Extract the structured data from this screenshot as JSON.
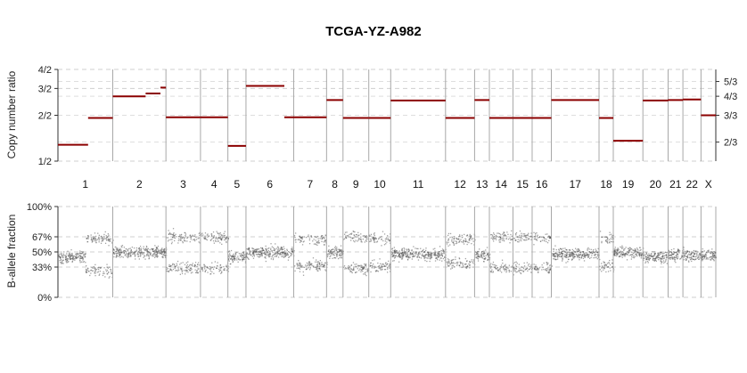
{
  "chart_data": [
    {
      "type": "line",
      "title": "TCGA-YZ-A982",
      "ylabel": "Copy number ratio",
      "y_scale": "log",
      "ylim": [
        0.5,
        2.0
      ],
      "y_ticks": [
        {
          "value": 0.5,
          "label": "1/2"
        },
        {
          "value": 1.0,
          "label": "2/2"
        },
        {
          "value": 1.5,
          "label": "3/2"
        },
        {
          "value": 2.0,
          "label": "4/2"
        }
      ],
      "right_ticks": [
        {
          "value": 0.6667,
          "label": "2/3"
        },
        {
          "value": 1.0,
          "label": "3/3"
        },
        {
          "value": 1.3333,
          "label": "4/3"
        },
        {
          "value": 1.6667,
          "label": "5/3"
        }
      ],
      "grid": true,
      "segment_color": "#8b0000",
      "x_unit": "genome position (chromosome-normalized)",
      "chromosomes": [
        {
          "name": "1",
          "start": 0.0,
          "end": 1.0
        },
        {
          "name": "2",
          "start": 1.0,
          "end": 1.97
        },
        {
          "name": "3",
          "start": 1.97,
          "end": 2.6
        },
        {
          "name": "4",
          "start": 2.6,
          "end": 3.1
        },
        {
          "name": "5",
          "start": 3.1,
          "end": 3.43
        },
        {
          "name": "6",
          "start": 3.43,
          "end": 4.3
        },
        {
          "name": "7",
          "start": 4.3,
          "end": 4.9
        },
        {
          "name": "8",
          "start": 4.9,
          "end": 5.2
        },
        {
          "name": "9",
          "start": 5.2,
          "end": 5.67
        },
        {
          "name": "10",
          "start": 5.67,
          "end": 6.07
        },
        {
          "name": "11",
          "start": 6.07,
          "end": 7.07
        },
        {
          "name": "12",
          "start": 7.07,
          "end": 7.6
        },
        {
          "name": "13",
          "start": 7.6,
          "end": 7.87
        },
        {
          "name": "14",
          "start": 7.87,
          "end": 8.3
        },
        {
          "name": "15",
          "start": 8.3,
          "end": 8.65
        },
        {
          "name": "16",
          "start": 8.65,
          "end": 9.0
        },
        {
          "name": "17",
          "start": 9.0,
          "end": 9.87
        },
        {
          "name": "18",
          "start": 9.87,
          "end": 10.13
        },
        {
          "name": "19",
          "start": 10.13,
          "end": 10.67
        },
        {
          "name": "20",
          "start": 10.67,
          "end": 11.13
        },
        {
          "name": "21",
          "start": 11.13,
          "end": 11.4
        },
        {
          "name": "22",
          "start": 11.4,
          "end": 11.73
        },
        {
          "name": "X",
          "start": 11.73,
          "end": 12.0
        }
      ],
      "segments": [
        {
          "x0": 0.0,
          "x1": 0.55,
          "y": 0.64
        },
        {
          "x0": 0.55,
          "x1": 1.0,
          "y": 0.96
        },
        {
          "x0": 1.0,
          "x1": 1.6,
          "y": 1.33
        },
        {
          "x0": 1.6,
          "x1": 1.87,
          "y": 1.39
        },
        {
          "x0": 1.87,
          "x1": 1.97,
          "y": 1.52
        },
        {
          "x0": 1.97,
          "x1": 2.6,
          "y": 0.97
        },
        {
          "x0": 2.6,
          "x1": 3.1,
          "y": 0.97
        },
        {
          "x0": 3.1,
          "x1": 3.43,
          "y": 0.63
        },
        {
          "x0": 3.43,
          "x1": 4.13,
          "y": 1.56
        },
        {
          "x0": 4.13,
          "x1": 4.9,
          "y": 0.97
        },
        {
          "x0": 4.9,
          "x1": 5.2,
          "y": 1.26
        },
        {
          "x0": 5.2,
          "x1": 5.67,
          "y": 0.96
        },
        {
          "x0": 5.67,
          "x1": 6.07,
          "y": 0.96
        },
        {
          "x0": 6.07,
          "x1": 7.07,
          "y": 1.25
        },
        {
          "x0": 7.07,
          "x1": 7.6,
          "y": 0.96
        },
        {
          "x0": 7.6,
          "x1": 7.87,
          "y": 1.26
        },
        {
          "x0": 7.87,
          "x1": 8.3,
          "y": 0.96
        },
        {
          "x0": 8.3,
          "x1": 8.65,
          "y": 0.96
        },
        {
          "x0": 8.65,
          "x1": 9.0,
          "y": 0.96
        },
        {
          "x0": 9.0,
          "x1": 9.87,
          "y": 1.26
        },
        {
          "x0": 9.87,
          "x1": 10.13,
          "y": 0.96
        },
        {
          "x0": 10.13,
          "x1": 10.67,
          "y": 0.68
        },
        {
          "x0": 10.67,
          "x1": 11.13,
          "y": 1.25
        },
        {
          "x0": 11.13,
          "x1": 11.4,
          "y": 1.26
        },
        {
          "x0": 11.4,
          "x1": 11.73,
          "y": 1.27
        },
        {
          "x0": 11.73,
          "x1": 12.0,
          "y": 1.0
        }
      ]
    },
    {
      "type": "scatter",
      "ylabel": "B-allele fraction",
      "ylim": [
        0,
        1
      ],
      "y_ticks": [
        {
          "value": 0.0,
          "label": "0%"
        },
        {
          "value": 0.3333,
          "label": "33%"
        },
        {
          "value": 0.5,
          "label": "50%"
        },
        {
          "value": 0.6667,
          "label": "67%"
        },
        {
          "value": 1.0,
          "label": "100%"
        }
      ],
      "grid": true,
      "point_color": "#555555",
      "baf_pattern": [
        {
          "chr": "1",
          "x0": 0.0,
          "x1": 0.5,
          "centers": [
            0.45
          ]
        },
        {
          "chr": "1",
          "x0": 0.5,
          "x1": 1.0,
          "centers": [
            0.3,
            0.65
          ]
        },
        {
          "chr": "2",
          "x0": 1.0,
          "x1": 1.97,
          "centers": [
            0.5
          ]
        },
        {
          "chr": "3",
          "x0": 1.97,
          "x1": 2.6,
          "centers": [
            0.33,
            0.67
          ]
        },
        {
          "chr": "4",
          "x0": 2.6,
          "x1": 3.1,
          "centers": [
            0.33,
            0.67
          ]
        },
        {
          "chr": "5",
          "x0": 3.1,
          "x1": 3.43,
          "centers": [
            0.45
          ]
        },
        {
          "chr": "6",
          "x0": 3.43,
          "x1": 4.3,
          "centers": [
            0.5
          ]
        },
        {
          "chr": "7",
          "x0": 4.3,
          "x1": 4.9,
          "centers": [
            0.35,
            0.65
          ]
        },
        {
          "chr": "8",
          "x0": 4.9,
          "x1": 5.2,
          "centers": [
            0.5
          ]
        },
        {
          "chr": "9",
          "x0": 5.2,
          "x1": 5.67,
          "centers": [
            0.33,
            0.67
          ]
        },
        {
          "chr": "10",
          "x0": 5.67,
          "x1": 6.07,
          "centers": [
            0.35,
            0.65
          ]
        },
        {
          "chr": "11",
          "x0": 6.07,
          "x1": 7.07,
          "centers": [
            0.48
          ]
        },
        {
          "chr": "12",
          "x0": 7.07,
          "x1": 7.6,
          "centers": [
            0.38,
            0.64
          ]
        },
        {
          "chr": "13",
          "x0": 7.6,
          "x1": 7.87,
          "centers": [
            0.47
          ]
        },
        {
          "chr": "14",
          "x0": 7.87,
          "x1": 8.3,
          "centers": [
            0.33,
            0.67
          ]
        },
        {
          "chr": "15",
          "x0": 8.3,
          "x1": 8.65,
          "centers": [
            0.33,
            0.67
          ]
        },
        {
          "chr": "16",
          "x0": 8.65,
          "x1": 9.0,
          "centers": [
            0.33,
            0.67
          ]
        },
        {
          "chr": "17",
          "x0": 9.0,
          "x1": 9.87,
          "centers": [
            0.48
          ]
        },
        {
          "chr": "18",
          "x0": 9.87,
          "x1": 10.13,
          "centers": [
            0.35,
            0.65
          ]
        },
        {
          "chr": "19",
          "x0": 10.13,
          "x1": 10.67,
          "centers": [
            0.5
          ]
        },
        {
          "chr": "20",
          "x0": 10.67,
          "x1": 11.13,
          "centers": [
            0.45
          ]
        },
        {
          "chr": "21",
          "x0": 11.13,
          "x1": 11.4,
          "centers": [
            0.47
          ]
        },
        {
          "chr": "22",
          "x0": 11.4,
          "x1": 11.73,
          "centers": [
            0.47
          ]
        },
        {
          "chr": "X",
          "x0": 11.73,
          "x1": 12.0,
          "centers": [
            0.47
          ]
        }
      ]
    }
  ]
}
